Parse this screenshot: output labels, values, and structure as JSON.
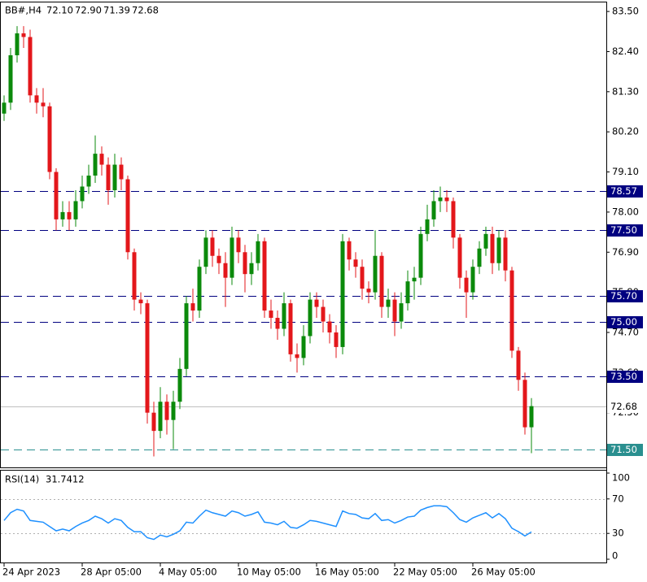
{
  "chart_data": {
    "type": "candlestick",
    "symbol": "BB#,H4",
    "header_values": [
      "72.10",
      "72.90",
      "71.39",
      "72.68"
    ],
    "up_color": "#0b8a0b",
    "down_color": "#e3171b",
    "categories": [
      "24 Apr 2023",
      null,
      null,
      null,
      null,
      null,
      null,
      null,
      null,
      null,
      null,
      null,
      "28 Apr 05:00",
      null,
      null,
      null,
      null,
      null,
      null,
      null,
      null,
      null,
      null,
      null,
      "4 May 05:00",
      null,
      null,
      null,
      null,
      null,
      null,
      null,
      null,
      null,
      null,
      null,
      "10 May 05:00",
      null,
      null,
      null,
      null,
      null,
      null,
      null,
      null,
      null,
      null,
      null,
      "16 May 05:00",
      null,
      null,
      null,
      null,
      null,
      null,
      null,
      null,
      null,
      null,
      null,
      "22 May 05:00",
      null,
      null,
      null,
      null,
      null,
      null,
      null,
      null,
      null,
      null,
      null,
      "26 May 05:00",
      null,
      null,
      null,
      null,
      null,
      null,
      null,
      null,
      null
    ],
    "open": [
      80.7,
      81.0,
      82.3,
      82.9,
      82.8,
      81.2,
      81.0,
      80.9,
      79.1,
      77.8,
      78.0,
      77.8,
      78.3,
      78.7,
      79.0,
      79.6,
      79.3,
      78.6,
      79.3,
      78.9,
      76.9,
      75.6,
      75.5,
      72.5,
      72.0,
      72.8,
      72.3,
      72.8,
      73.7,
      75.5,
      75.3,
      76.5,
      77.3,
      76.8,
      76.6,
      76.2,
      77.3,
      76.9,
      76.3,
      76.6,
      77.2,
      75.3,
      75.1,
      74.8,
      75.5,
      74.1,
      74.0,
      74.6,
      75.6,
      75.4,
      75.0,
      74.7,
      74.3,
      77.2,
      76.7,
      76.5,
      75.9,
      75.8,
      76.8,
      75.4,
      75.6,
      75.0,
      75.5,
      76.1,
      76.2,
      77.4,
      77.8,
      78.3,
      78.4,
      78.3,
      77.3,
      76.2,
      75.8,
      76.5,
      77.0,
      77.4,
      76.6,
      77.3,
      76.4,
      74.2,
      73.4,
      72.1
    ],
    "high": [
      81.2,
      82.5,
      83.1,
      83.1,
      83.0,
      81.4,
      81.4,
      81.0,
      79.2,
      78.3,
      78.3,
      78.6,
      79.0,
      79.3,
      80.1,
      79.8,
      79.5,
      79.6,
      79.5,
      79.0,
      77.0,
      75.8,
      75.6,
      72.8,
      73.2,
      73.0,
      73.1,
      74.0,
      75.7,
      75.9,
      76.7,
      77.5,
      77.5,
      77.0,
      76.9,
      77.6,
      77.5,
      77.1,
      76.9,
      77.4,
      77.3,
      75.6,
      75.3,
      75.8,
      75.6,
      74.4,
      74.9,
      75.8,
      75.8,
      75.6,
      75.2,
      74.9,
      77.4,
      77.3,
      76.9,
      76.7,
      76.1,
      77.5,
      76.9,
      75.9,
      75.8,
      75.8,
      76.4,
      76.5,
      77.6,
      78.2,
      78.6,
      78.7,
      78.6,
      78.4,
      77.4,
      76.4,
      76.7,
      77.2,
      77.6,
      77.6,
      77.5,
      77.5,
      76.5,
      74.3,
      73.6,
      72.9
    ],
    "low": [
      80.5,
      80.8,
      82.1,
      82.5,
      81.0,
      80.7,
      80.6,
      78.9,
      77.5,
      77.6,
      77.5,
      77.6,
      78.1,
      78.5,
      78.8,
      79.0,
      78.2,
      78.4,
      78.6,
      76.7,
      75.3,
      75.2,
      72.2,
      71.3,
      71.8,
      71.9,
      71.5,
      72.6,
      73.5,
      75.0,
      75.1,
      76.3,
      76.5,
      76.3,
      75.4,
      76.0,
      76.6,
      75.8,
      76.0,
      76.4,
      75.1,
      74.8,
      74.5,
      74.6,
      73.9,
      73.6,
      73.8,
      74.4,
      75.1,
      74.7,
      74.4,
      74.0,
      74.1,
      76.4,
      76.2,
      75.6,
      75.5,
      75.6,
      75.1,
      75.1,
      74.6,
      74.8,
      75.3,
      75.6,
      76.0,
      77.2,
      77.6,
      78.0,
      78.0,
      77.0,
      75.9,
      75.1,
      75.6,
      76.3,
      76.8,
      76.3,
      76.4,
      76.1,
      74.0,
      73.1,
      71.9,
      71.39
    ],
    "close": [
      81.0,
      82.3,
      82.9,
      82.8,
      81.2,
      81.0,
      80.9,
      79.1,
      77.8,
      78.0,
      77.8,
      78.3,
      78.7,
      79.0,
      79.6,
      79.3,
      78.6,
      79.3,
      78.9,
      76.9,
      75.6,
      75.5,
      72.5,
      72.0,
      72.8,
      72.3,
      72.8,
      73.7,
      75.5,
      75.3,
      76.5,
      77.3,
      76.8,
      76.6,
      76.2,
      77.3,
      76.9,
      76.3,
      76.6,
      77.2,
      75.3,
      75.1,
      74.8,
      75.5,
      74.1,
      74.0,
      74.6,
      75.6,
      75.4,
      75.0,
      74.7,
      74.3,
      77.2,
      76.7,
      76.5,
      75.9,
      75.8,
      76.8,
      75.4,
      75.6,
      75.0,
      75.5,
      76.1,
      76.2,
      77.4,
      77.8,
      78.3,
      78.4,
      78.3,
      77.3,
      76.2,
      75.8,
      76.5,
      77.0,
      77.4,
      76.6,
      77.3,
      76.4,
      74.2,
      73.4,
      72.1,
      72.68
    ],
    "ylim": [
      71.0,
      83.77
    ],
    "yticks": [
      {
        "value": 83.5,
        "label": "83.50"
      },
      {
        "value": 82.4,
        "label": "82.40"
      },
      {
        "value": 81.3,
        "label": "81.30"
      },
      {
        "value": 80.2,
        "label": "80.20"
      },
      {
        "value": 79.1,
        "label": "79.10"
      },
      {
        "value": 78.0,
        "label": "78.00"
      },
      {
        "value": 76.9,
        "label": "76.90"
      },
      {
        "value": 75.8,
        "label": "75.80"
      },
      {
        "value": 74.7,
        "label": "74.70"
      },
      {
        "value": 73.6,
        "label": "73.60"
      },
      {
        "value": 72.5,
        "label": "72.50"
      }
    ],
    "levels": [
      {
        "value": 78.57,
        "label": "78.57",
        "color": "#000080"
      },
      {
        "value": 77.5,
        "label": "77.50",
        "color": "#000080"
      },
      {
        "value": 75.7,
        "label": "75.70",
        "color": "#000080"
      },
      {
        "value": 75.0,
        "label": "75.00",
        "color": "#000080"
      },
      {
        "value": 73.5,
        "label": "73.50",
        "color": "#000080"
      },
      {
        "value": 71.5,
        "label": "71.50",
        "color": "#2a8f8f"
      }
    ],
    "current_price": {
      "value": 72.68,
      "label": "72.68",
      "color": "#c0c0c0"
    },
    "rsi": {
      "name": "RSI(14)",
      "color": "#1e90ff",
      "values": [
        45,
        54,
        58,
        56,
        45,
        44,
        43,
        38,
        33,
        35,
        33,
        38,
        42,
        45,
        50,
        47,
        42,
        47,
        45,
        37,
        32,
        32,
        25,
        23,
        28,
        26,
        29,
        33,
        43,
        42,
        50,
        57,
        54,
        52,
        50,
        56,
        54,
        50,
        52,
        55,
        43,
        42,
        40,
        44,
        37,
        36,
        40,
        45,
        44,
        42,
        40,
        38,
        56,
        53,
        52,
        48,
        47,
        53,
        45,
        46,
        42,
        45,
        49,
        50,
        57,
        60,
        62,
        62,
        61,
        54,
        46,
        43,
        48,
        51,
        54,
        48,
        53,
        47,
        36,
        32,
        27,
        31.7412
      ],
      "ylim": [
        0,
        100
      ],
      "yticks": [
        100,
        70,
        30,
        0
      ],
      "levels": [
        70,
        30
      ]
    }
  }
}
